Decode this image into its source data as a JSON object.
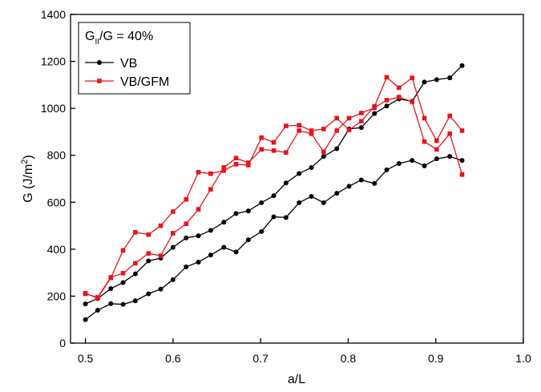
{
  "chart_data": {
    "type": "line",
    "legend_title": {
      "base": "G",
      "sub": "II",
      "rest": "/G = 40%"
    },
    "xlabel": "a/L",
    "ylabel": {
      "base": "G (J/m",
      "sup": "2",
      "rest": ")"
    },
    "x": [
      0.5,
      0.514,
      0.529,
      0.543,
      0.557,
      0.572,
      0.586,
      0.6,
      0.615,
      0.629,
      0.643,
      0.658,
      0.672,
      0.686,
      0.701,
      0.715,
      0.729,
      0.744,
      0.758,
      0.772,
      0.787,
      0.801,
      0.815,
      0.83,
      0.844,
      0.858,
      0.873,
      0.887,
      0.901,
      0.916,
      0.93
    ],
    "series": [
      {
        "name": "VB",
        "color": "#000000",
        "marker": "circle",
        "values": [
          167,
          190,
          232,
          258,
          295,
          350,
          362,
          408,
          448,
          457,
          480,
          515,
          552,
          563,
          598,
          628,
          682,
          722,
          748,
          795,
          828,
          912,
          918,
          978,
          1010,
          1040,
          1030,
          1112,
          1122,
          1130,
          1182
        ]
      },
      {
        "name": "VB/GFM",
        "color": "#e8141a",
        "marker": "square",
        "values": [
          212,
          192,
          278,
          395,
          472,
          462,
          500,
          560,
          612,
          728,
          722,
          735,
          762,
          758,
          875,
          855,
          925,
          928,
          905,
          912,
          958,
          908,
          945,
          1008,
          1132,
          1088,
          1130,
          958,
          862,
          968,
          905
        ]
      },
      {
        "color": "#000000",
        "marker": "circle",
        "values": [
          100,
          140,
          168,
          165,
          180,
          210,
          230,
          270,
          325,
          345,
          375,
          408,
          388,
          440,
          475,
          538,
          535,
          598,
          625,
          598,
          638,
          668,
          695,
          680,
          738,
          765,
          778,
          755,
          785,
          795,
          778
        ]
      },
      {
        "color": "#e8141a",
        "marker": "square",
        "values": [
          210,
          195,
          280,
          298,
          340,
          382,
          372,
          468,
          508,
          570,
          655,
          748,
          788,
          768,
          825,
          820,
          812,
          905,
          892,
          815,
          905,
          958,
          980,
          1002,
          1035,
          1048,
          1028,
          858,
          825,
          892,
          718
        ]
      }
    ],
    "xlim": [
      0.483,
      1.0
    ],
    "ylim": [
      0,
      1400
    ],
    "xticks": [
      0.5,
      0.6,
      0.7,
      0.8,
      0.9,
      {
        "value": 1,
        "label": "1.0"
      }
    ],
    "yticks": [
      0,
      200,
      400,
      600,
      800,
      1000,
      1200,
      1400
    ]
  }
}
